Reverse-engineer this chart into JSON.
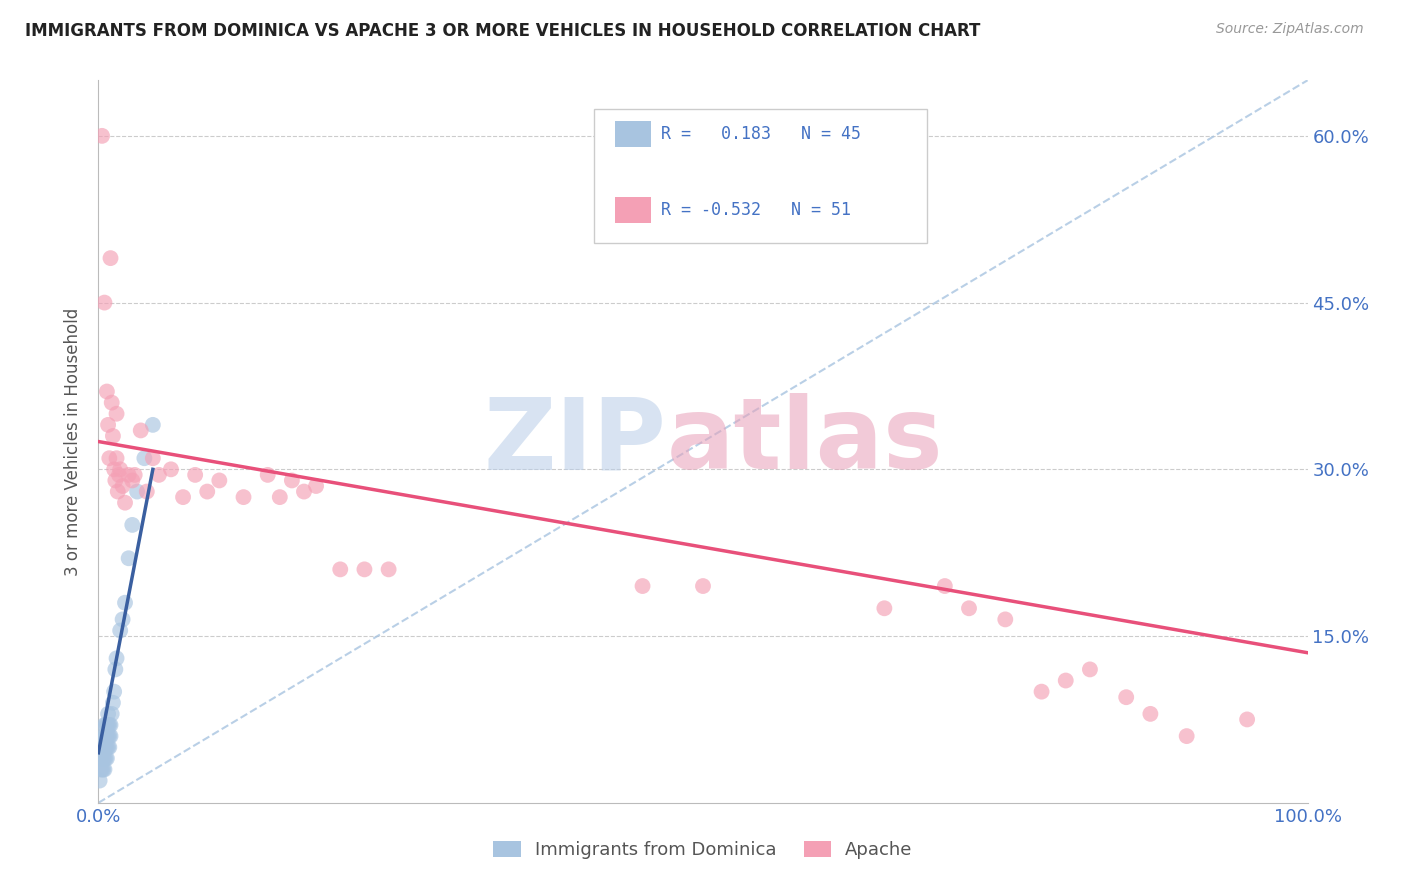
{
  "title": "IMMIGRANTS FROM DOMINICA VS APACHE 3 OR MORE VEHICLES IN HOUSEHOLD CORRELATION CHART",
  "source": "Source: ZipAtlas.com",
  "ylabel": "3 or more Vehicles in Household",
  "xlim": [
    0.0,
    1.0
  ],
  "ylim": [
    0.0,
    0.65
  ],
  "ytick_pos": [
    0.0,
    0.15,
    0.3,
    0.45,
    0.6
  ],
  "ytick_labels": [
    "",
    "15.0%",
    "30.0%",
    "45.0%",
    "60.0%"
  ],
  "xtick_pos": [
    0.0,
    0.5,
    1.0
  ],
  "xtick_labels": [
    "0.0%",
    "",
    "100.0%"
  ],
  "blue_R": 0.183,
  "blue_N": 45,
  "pink_R": -0.532,
  "pink_N": 51,
  "blue_color": "#a8c4e0",
  "pink_color": "#f4a0b5",
  "blue_line_color": "#3a5fa0",
  "pink_line_color": "#e8507a",
  "diag_line_color": "#a8c4e0",
  "title_color": "#222222",
  "axis_label_color": "#555555",
  "tick_color": "#4472c4",
  "grid_color": "#cccccc",
  "watermark_zip_color": "#b8cde8",
  "watermark_atlas_color": "#e8a0b8",
  "legend_label_blue": "Immigrants from Dominica",
  "legend_label_pink": "Apache",
  "blue_x": [
    0.001,
    0.002,
    0.002,
    0.003,
    0.003,
    0.003,
    0.004,
    0.004,
    0.004,
    0.004,
    0.005,
    0.005,
    0.005,
    0.005,
    0.005,
    0.006,
    0.006,
    0.006,
    0.006,
    0.007,
    0.007,
    0.007,
    0.007,
    0.008,
    0.008,
    0.008,
    0.008,
    0.009,
    0.009,
    0.009,
    0.01,
    0.01,
    0.011,
    0.012,
    0.013,
    0.014,
    0.015,
    0.018,
    0.02,
    0.022,
    0.025,
    0.028,
    0.032,
    0.038,
    0.045
  ],
  "blue_y": [
    0.02,
    0.03,
    0.04,
    0.03,
    0.045,
    0.05,
    0.03,
    0.04,
    0.05,
    0.06,
    0.03,
    0.04,
    0.05,
    0.06,
    0.07,
    0.04,
    0.05,
    0.06,
    0.07,
    0.04,
    0.05,
    0.06,
    0.07,
    0.05,
    0.06,
    0.07,
    0.08,
    0.05,
    0.06,
    0.07,
    0.06,
    0.07,
    0.08,
    0.09,
    0.1,
    0.12,
    0.13,
    0.155,
    0.165,
    0.18,
    0.22,
    0.25,
    0.28,
    0.31,
    0.34
  ],
  "pink_x": [
    0.003,
    0.005,
    0.007,
    0.008,
    0.009,
    0.01,
    0.011,
    0.012,
    0.013,
    0.014,
    0.015,
    0.015,
    0.016,
    0.017,
    0.018,
    0.02,
    0.022,
    0.025,
    0.028,
    0.03,
    0.035,
    0.04,
    0.045,
    0.05,
    0.06,
    0.07,
    0.08,
    0.09,
    0.1,
    0.12,
    0.14,
    0.15,
    0.16,
    0.17,
    0.18,
    0.2,
    0.22,
    0.24,
    0.45,
    0.5,
    0.65,
    0.7,
    0.72,
    0.75,
    0.78,
    0.8,
    0.82,
    0.85,
    0.87,
    0.9,
    0.95
  ],
  "pink_y": [
    0.6,
    0.45,
    0.37,
    0.34,
    0.31,
    0.49,
    0.36,
    0.33,
    0.3,
    0.29,
    0.35,
    0.31,
    0.28,
    0.295,
    0.3,
    0.285,
    0.27,
    0.295,
    0.29,
    0.295,
    0.335,
    0.28,
    0.31,
    0.295,
    0.3,
    0.275,
    0.295,
    0.28,
    0.29,
    0.275,
    0.295,
    0.275,
    0.29,
    0.28,
    0.285,
    0.21,
    0.21,
    0.21,
    0.195,
    0.195,
    0.175,
    0.195,
    0.175,
    0.165,
    0.1,
    0.11,
    0.12,
    0.095,
    0.08,
    0.06,
    0.075
  ],
  "blue_trend_x0": 0.0,
  "blue_trend_x1": 0.045,
  "blue_trend_y0": 0.045,
  "blue_trend_y1": 0.3,
  "diag_trend_x0": 0.0,
  "diag_trend_x1": 1.0,
  "diag_trend_y0": 0.0,
  "diag_trend_y1": 0.65,
  "pink_trend_x0": 0.0,
  "pink_trend_x1": 1.0,
  "pink_trend_y0": 0.325,
  "pink_trend_y1": 0.135
}
